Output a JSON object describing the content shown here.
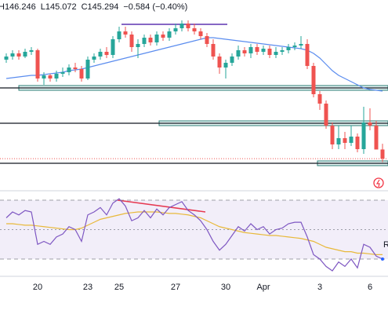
{
  "chart_data": [
    {
      "type": "candlestick",
      "header": [
        "H146.246",
        "L145.072",
        "C145.294",
        "−0.584 (−0.40%)"
      ],
      "categories": [
        null,
        null,
        null,
        null,
        null,
        "20",
        null,
        null,
        null,
        null,
        null,
        null,
        null,
        "23",
        null,
        null,
        null,
        null,
        "25",
        null,
        null,
        null,
        null,
        null,
        null,
        null,
        null,
        "27",
        null,
        null,
        null,
        null,
        null,
        null,
        null,
        "30",
        null,
        null,
        null,
        null,
        null,
        "Apr",
        null,
        null,
        null,
        null,
        null,
        null,
        null,
        null,
        "3",
        null,
        null,
        null,
        null,
        null,
        null,
        null,
        "6",
        null,
        null
      ],
      "ohlc": [
        [
          151.6,
          152.0,
          151.4,
          151.8
        ],
        [
          151.8,
          152.2,
          151.6,
          152.0
        ],
        [
          152.0,
          152.2,
          151.6,
          151.8
        ],
        [
          151.8,
          152.3,
          151.7,
          152.1
        ],
        [
          152.1,
          152.4,
          151.9,
          152.2
        ],
        [
          152.2,
          152.3,
          150.2,
          150.4
        ],
        [
          150.4,
          150.8,
          150.0,
          150.6
        ],
        [
          150.6,
          150.7,
          150.2,
          150.4
        ],
        [
          150.4,
          150.9,
          150.2,
          150.7
        ],
        [
          150.7,
          151.1,
          150.5,
          150.8
        ],
        [
          150.8,
          151.3,
          150.6,
          151.1
        ],
        [
          151.1,
          151.4,
          150.8,
          151.0
        ],
        [
          151.0,
          151.2,
          150.2,
          150.4
        ],
        [
          150.4,
          151.8,
          150.3,
          151.6
        ],
        [
          151.6,
          152.0,
          151.4,
          151.8
        ],
        [
          151.8,
          152.3,
          151.6,
          152.1
        ],
        [
          152.1,
          152.4,
          151.7,
          151.9
        ],
        [
          151.9,
          153.1,
          151.7,
          152.9
        ],
        [
          152.9,
          153.7,
          152.7,
          153.4
        ],
        [
          153.4,
          153.7,
          153.0,
          153.2
        ],
        [
          153.2,
          153.4,
          152.1,
          152.4
        ],
        [
          152.4,
          152.9,
          151.7,
          152.6
        ],
        [
          152.6,
          153.2,
          152.4,
          153.0
        ],
        [
          153.0,
          153.2,
          152.5,
          152.7
        ],
        [
          152.7,
          153.4,
          152.5,
          153.2
        ],
        [
          153.2,
          153.4,
          152.8,
          153.0
        ],
        [
          153.0,
          153.6,
          152.8,
          153.4
        ],
        [
          153.4,
          153.9,
          153.2,
          153.6
        ],
        [
          153.6,
          154.1,
          153.4,
          153.9
        ],
        [
          153.9,
          154.1,
          153.4,
          153.6
        ],
        [
          153.6,
          153.9,
          153.2,
          153.4
        ],
        [
          153.4,
          153.6,
          152.9,
          153.1
        ],
        [
          153.1,
          153.3,
          152.4,
          152.6
        ],
        [
          152.6,
          152.9,
          151.6,
          151.8
        ],
        [
          151.8,
          152.0,
          150.7,
          151.1
        ],
        [
          151.1,
          151.6,
          150.4,
          151.4
        ],
        [
          151.4,
          152.0,
          151.2,
          151.8
        ],
        [
          151.8,
          152.5,
          151.6,
          152.2
        ],
        [
          152.2,
          152.4,
          151.8,
          152.0
        ],
        [
          152.0,
          152.6,
          151.7,
          152.4
        ],
        [
          152.4,
          152.6,
          151.9,
          152.1
        ],
        [
          152.1,
          152.5,
          151.9,
          152.3
        ],
        [
          152.3,
          152.5,
          151.7,
          151.9
        ],
        [
          151.9,
          152.4,
          151.7,
          152.1
        ],
        [
          152.1,
          152.4,
          151.9,
          152.2
        ],
        [
          152.2,
          152.6,
          152.0,
          152.4
        ],
        [
          152.4,
          152.7,
          152.2,
          152.5
        ],
        [
          152.5,
          153.1,
          152.3,
          152.6
        ],
        [
          152.6,
          152.9,
          151.0,
          151.2
        ],
        [
          151.2,
          151.4,
          149.2,
          149.4
        ],
        [
          149.4,
          149.6,
          148.4,
          148.8
        ],
        [
          148.8,
          149.0,
          147.2,
          147.4
        ],
        [
          147.4,
          147.6,
          145.9,
          146.2
        ],
        [
          146.2,
          147.4,
          145.9,
          146.6
        ],
        [
          146.6,
          147.0,
          145.9,
          146.3
        ],
        [
          146.3,
          147.4,
          146.1,
          146.7
        ],
        [
          146.7,
          146.9,
          145.7,
          145.9
        ],
        [
          145.9,
          148.6,
          145.6,
          147.6
        ],
        [
          147.6,
          148.5,
          147.1,
          147.4
        ],
        [
          147.4,
          147.7,
          145.9,
          145.878
        ],
        [
          145.878,
          146.246,
          145.072,
          145.294
        ]
      ],
      "up_color": "#26a69a",
      "down_color": "#ef5350",
      "ma": {
        "color": "#5b8def",
        "values": [
          150.4,
          150.45,
          150.5,
          150.55,
          150.6,
          150.6,
          150.65,
          150.7,
          150.75,
          150.8,
          150.9,
          150.95,
          151.0,
          151.1,
          151.2,
          151.3,
          151.4,
          151.5,
          151.6,
          151.7,
          151.8,
          151.9,
          152.0,
          152.1,
          152.2,
          152.3,
          152.4,
          152.5,
          152.6,
          152.7,
          152.8,
          152.9,
          153.0,
          153.0,
          152.95,
          152.9,
          152.85,
          152.8,
          152.75,
          152.7,
          152.65,
          152.6,
          152.55,
          152.5,
          152.45,
          152.4,
          152.35,
          152.3,
          152.2,
          152.0,
          151.7,
          151.3,
          150.9,
          150.6,
          150.4,
          150.2,
          150.0,
          149.8,
          149.7,
          149.65,
          149.6
        ]
      },
      "levels": [
        149.8,
        147.55,
        145.0
      ],
      "resistance": 153.85,
      "ylim": [
        144.0,
        155.4
      ]
    },
    {
      "type": "line",
      "tag": "R",
      "series": [
        {
          "color": "#7e57c2",
          "values": [
            58,
            62,
            60,
            63,
            62,
            40,
            42,
            40,
            45,
            47,
            52,
            50,
            42,
            60,
            62,
            65,
            60,
            68,
            71,
            66,
            56,
            58,
            63,
            58,
            64,
            60,
            65,
            67,
            69,
            63,
            60,
            56,
            50,
            42,
            36,
            40,
            46,
            52,
            49,
            54,
            50,
            52,
            47,
            50,
            51,
            54,
            55,
            55,
            45,
            33,
            30,
            25,
            22,
            28,
            25,
            30,
            24,
            40,
            38,
            32,
            30
          ]
        },
        {
          "color": "#e8b93a",
          "values": [
            54,
            54,
            53.5,
            53,
            53,
            52.5,
            52,
            51.5,
            51,
            50.5,
            50,
            50,
            51,
            53,
            55,
            57,
            58,
            59,
            60,
            61,
            61.5,
            62,
            62,
            62,
            62,
            61.5,
            61,
            61,
            60.5,
            60,
            59,
            58,
            56,
            54,
            52,
            51,
            50,
            49,
            48,
            47.5,
            47,
            46.5,
            46,
            46,
            45.5,
            45,
            44.5,
            44,
            43,
            42,
            40,
            38,
            37,
            36,
            35,
            35,
            34,
            34,
            33.5,
            33,
            33
          ]
        }
      ],
      "levels": [
        70,
        50,
        30
      ],
      "ylim": [
        20,
        78
      ]
    }
  ]
}
